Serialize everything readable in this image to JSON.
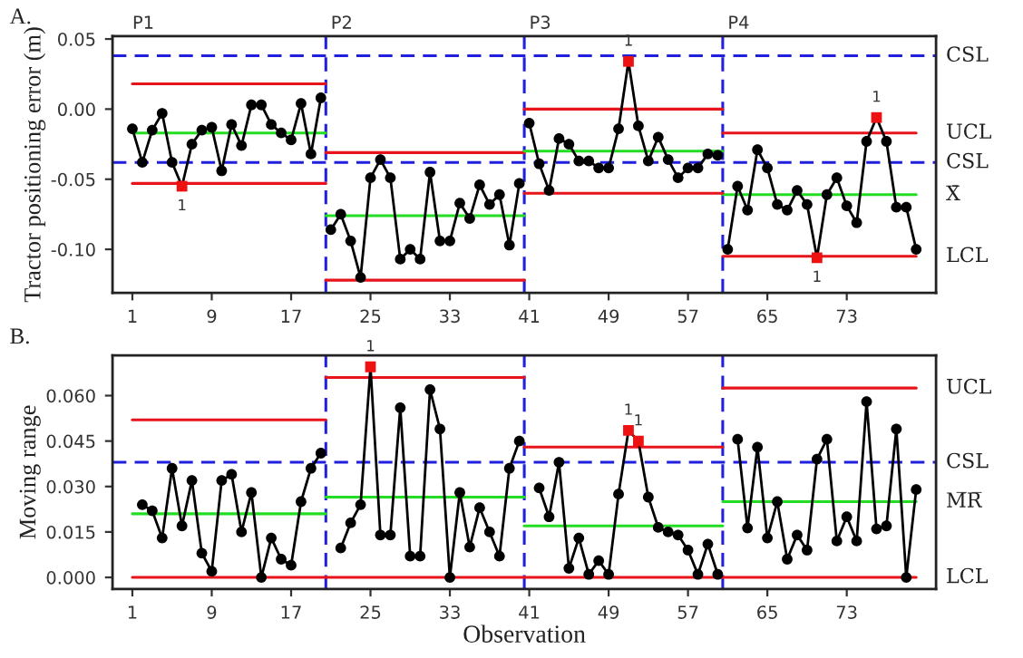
{
  "chart_data": [
    {
      "type": "line",
      "title": "A.",
      "ylabel": "Tractor positioning error (m)",
      "xlim": [
        -1,
        82
      ],
      "ylim": [
        -0.131,
        0.052
      ],
      "xticks": [
        1,
        9,
        17,
        25,
        33,
        41,
        49,
        57,
        65,
        73
      ],
      "yticks": [
        0.05,
        {
          "value": 0,
          "label": "0.00"
        },
        -0.05,
        {
          "value": -0.1,
          "label": "-0.10"
        }
      ],
      "grid": false,
      "legend": false,
      "marker": "circle",
      "line_style": "solid",
      "annotations": [
        "P1",
        "P2",
        "P3",
        "P4",
        {
          "text": "1",
          "x": 6,
          "y": -0.055
        },
        {
          "text": "1",
          "x": 51,
          "y": 0.034
        },
        {
          "text": "1",
          "x": 70,
          "y": -0.106
        },
        {
          "text": "1",
          "x": 76,
          "y": -0.006
        }
      ],
      "ref_lines": [
        {
          "axis": "y",
          "value": 0.038,
          "label": "CSL",
          "color": "#1f1fdd",
          "line_style": "dashed"
        },
        {
          "axis": "y",
          "value": -0.038,
          "label": "CSL",
          "color": "#1f1fdd",
          "line_style": "dashed"
        },
        {
          "axis": "x",
          "value": 20.5,
          "color": "#1f1fdd",
          "line_style": "dashed"
        },
        {
          "axis": "x",
          "value": 40.5,
          "color": "#1f1fdd",
          "line_style": "dashed"
        },
        {
          "axis": "x",
          "value": 60.5,
          "color": "#1f1fdd",
          "line_style": "dashed"
        }
      ],
      "series": [
        {
          "name": "UCL",
          "color": "#e8141c",
          "marker": "none",
          "x": [
            1,
            20.5,
            20.5,
            40.5,
            40.5,
            60.5,
            60.5,
            80
          ],
          "values": [
            0.018,
            0.018,
            -0.031,
            -0.031,
            0.0,
            0.0,
            -0.017,
            -0.017
          ]
        },
        {
          "name": "X̄",
          "color": "#22dd22",
          "marker": "none",
          "x": [
            1,
            20.5,
            20.5,
            40.5,
            40.5,
            60.5,
            60.5,
            80
          ],
          "values": [
            -0.017,
            -0.017,
            -0.076,
            -0.076,
            -0.03,
            -0.03,
            -0.061,
            -0.061
          ]
        },
        {
          "name": "LCL",
          "color": "#e8141c",
          "marker": "none",
          "x": [
            1,
            20.5,
            20.5,
            40.5,
            40.5,
            60.5,
            60.5,
            80
          ],
          "values": [
            -0.053,
            -0.053,
            -0.122,
            -0.122,
            -0.06,
            -0.06,
            -0.105,
            -0.105
          ]
        },
        {
          "color": "#000000",
          "x": [
            1,
            2,
            3,
            4,
            5,
            6,
            7,
            8,
            9,
            10,
            11,
            12,
            13,
            14,
            15,
            16,
            17,
            18,
            19,
            20
          ],
          "values": [
            -0.014,
            -0.038,
            -0.015,
            -0.003,
            -0.038,
            -0.055,
            -0.025,
            -0.015,
            -0.013,
            -0.044,
            -0.011,
            -0.026,
            0.003,
            0.003,
            -0.011,
            -0.017,
            -0.022,
            0.004,
            -0.032,
            0.008
          ],
          "colors": [
            "#000000",
            "#000000",
            "#000000",
            "#000000",
            "#000000",
            "#ee1111",
            "#000000",
            "#000000",
            "#000000",
            "#000000",
            "#000000",
            "#000000",
            "#000000",
            "#000000",
            "#000000",
            "#000000",
            "#000000",
            "#000000",
            "#000000",
            "#000000"
          ]
        },
        {
          "color": "#000000",
          "x": [
            21,
            22,
            23,
            24,
            25,
            26,
            27,
            28,
            29,
            30,
            31,
            32,
            33,
            34,
            35,
            36,
            37,
            38,
            39,
            40
          ],
          "values": [
            -0.086,
            -0.075,
            -0.094,
            -0.12,
            -0.049,
            -0.036,
            -0.049,
            -0.107,
            -0.1,
            -0.107,
            -0.045,
            -0.094,
            -0.094,
            -0.067,
            -0.078,
            -0.054,
            -0.068,
            -0.061,
            -0.097,
            -0.053
          ]
        },
        {
          "color": "#000000",
          "x": [
            41,
            42,
            43,
            44,
            45,
            46,
            47,
            48,
            49,
            50,
            51,
            52,
            53,
            54,
            55,
            56,
            57,
            58,
            59,
            60
          ],
          "values": [
            -0.01,
            -0.039,
            -0.058,
            -0.021,
            -0.025,
            -0.037,
            -0.037,
            -0.042,
            -0.042,
            -0.014,
            0.034,
            -0.012,
            -0.037,
            -0.02,
            -0.036,
            -0.049,
            -0.042,
            -0.042,
            -0.032,
            -0.033
          ],
          "colors": [
            "#000000",
            "#000000",
            "#000000",
            "#000000",
            "#000000",
            "#000000",
            "#000000",
            "#000000",
            "#000000",
            "#000000",
            "#ee1111",
            "#000000",
            "#000000",
            "#000000",
            "#000000",
            "#000000",
            "#000000",
            "#000000",
            "#000000",
            "#000000"
          ]
        },
        {
          "color": "#000000",
          "x": [
            61,
            62,
            63,
            64,
            65,
            66,
            67,
            68,
            69,
            70,
            71,
            72,
            73,
            74,
            75,
            76,
            77,
            78,
            79,
            80
          ],
          "values": [
            -0.1,
            -0.055,
            -0.072,
            -0.029,
            -0.042,
            -0.068,
            -0.072,
            -0.058,
            -0.068,
            -0.106,
            -0.061,
            -0.049,
            -0.069,
            -0.081,
            -0.023,
            -0.006,
            -0.023,
            -0.07,
            -0.07,
            -0.1
          ],
          "colors": [
            "#000000",
            "#000000",
            "#000000",
            "#000000",
            "#000000",
            "#000000",
            "#000000",
            "#000000",
            "#000000",
            "#ee1111",
            "#000000",
            "#000000",
            "#000000",
            "#000000",
            "#000000",
            "#ee1111",
            "#000000",
            "#000000",
            "#000000",
            "#000000"
          ]
        }
      ]
    },
    {
      "type": "line",
      "title": "B.",
      "xlabel": "Observation",
      "ylabel": "Moving range",
      "xlim": [
        -1,
        82
      ],
      "ylim": [
        -0.0038,
        0.0733
      ],
      "xticks": [
        1,
        9,
        17,
        25,
        33,
        41,
        49,
        57,
        65,
        73
      ],
      "yticks": [
        {
          "value": 0,
          "label": "0.000"
        },
        {
          "value": 0.015,
          "label": "0.015"
        },
        {
          "value": 0.03,
          "label": "0.030"
        },
        {
          "value": 0.045,
          "label": "0.045"
        },
        {
          "value": 0.06,
          "label": "0.060"
        }
      ],
      "grid": false,
      "legend": false,
      "marker": "circle",
      "line_style": "solid",
      "annotations": [
        {
          "text": "1",
          "x": 25,
          "y": 0.0695
        },
        {
          "text": "1",
          "x": 51,
          "y": 0.0485
        },
        {
          "text": "1",
          "x": 52,
          "y": 0.045
        }
      ],
      "ref_lines": [
        {
          "axis": "y",
          "value": 0.038,
          "label": "CSL",
          "color": "#1f1fdd",
          "line_style": "dashed"
        },
        {
          "axis": "x",
          "value": 20.5,
          "color": "#1f1fdd",
          "line_style": "dashed"
        },
        {
          "axis": "x",
          "value": 40.5,
          "color": "#1f1fdd",
          "line_style": "dashed"
        },
        {
          "axis": "x",
          "value": 60.5,
          "color": "#1f1fdd",
          "line_style": "dashed"
        }
      ],
      "series": [
        {
          "name": "UCL",
          "color": "#e8141c",
          "marker": "none",
          "x": [
            1,
            20.5,
            20.5,
            40.5,
            40.5,
            60.5,
            60.5,
            80
          ],
          "values": [
            0.052,
            0.052,
            0.066,
            0.066,
            0.043,
            0.043,
            0.0625,
            0.0625
          ]
        },
        {
          "name": "M̅R̅",
          "color": "#22dd22",
          "marker": "none",
          "x": [
            1,
            20.5,
            20.5,
            40.5,
            40.5,
            60.5,
            60.5,
            80
          ],
          "values": [
            0.021,
            0.021,
            0.0265,
            0.0265,
            0.017,
            0.017,
            0.025,
            0.025
          ]
        },
        {
          "name": "LCL",
          "color": "#e8141c",
          "marker": "none",
          "x": [
            1,
            20.5,
            20.5,
            40.5,
            40.5,
            60.5,
            60.5,
            80
          ],
          "values": [
            0,
            0,
            0,
            0,
            0,
            0,
            0,
            0
          ]
        },
        {
          "color": "#000000",
          "x": [
            2,
            3,
            4,
            5,
            6,
            7,
            8,
            9,
            10,
            11,
            12,
            13,
            14,
            15,
            16,
            17,
            18,
            19,
            20
          ],
          "values": [
            0.024,
            0.022,
            0.013,
            0.036,
            0.017,
            0.032,
            0.008,
            0.002,
            0.032,
            0.034,
            0.015,
            0.028,
            0.0,
            0.013,
            0.006,
            0.004,
            0.025,
            0.036,
            0.041
          ]
        },
        {
          "color": "#000000",
          "x": [
            22,
            23,
            24,
            25,
            26,
            27,
            28,
            29,
            30,
            31,
            32,
            33,
            34,
            35,
            36,
            37,
            38,
            39,
            40
          ],
          "values": [
            0.0097,
            0.018,
            0.024,
            0.0695,
            0.014,
            0.014,
            0.056,
            0.007,
            0.007,
            0.062,
            0.049,
            0.0,
            0.028,
            0.01,
            0.023,
            0.015,
            0.007,
            0.036,
            0.045
          ],
          "colors": [
            "#000000",
            "#000000",
            "#000000",
            "#ee1111",
            "#000000",
            "#000000",
            "#000000",
            "#000000",
            "#000000",
            "#000000",
            "#000000",
            "#000000",
            "#000000",
            "#000000",
            "#000000",
            "#000000",
            "#000000",
            "#000000",
            "#000000"
          ]
        },
        {
          "color": "#000000",
          "x": [
            42,
            43,
            44,
            45,
            46,
            47,
            48,
            49,
            50,
            51,
            52,
            53,
            54,
            55,
            56,
            57,
            58,
            59,
            60
          ],
          "values": [
            0.0295,
            0.02,
            0.038,
            0.003,
            0.013,
            0.001,
            0.0055,
            0.001,
            0.0275,
            0.0485,
            0.045,
            0.0265,
            0.0165,
            0.015,
            0.014,
            0.009,
            0.001,
            0.011,
            0.001
          ],
          "colors": [
            "#000000",
            "#000000",
            "#000000",
            "#000000",
            "#000000",
            "#000000",
            "#000000",
            "#000000",
            "#000000",
            "#ee1111",
            "#ee1111",
            "#000000",
            "#000000",
            "#000000",
            "#000000",
            "#000000",
            "#000000",
            "#000000",
            "#000000"
          ]
        },
        {
          "color": "#000000",
          "x": [
            62,
            63,
            64,
            65,
            66,
            67,
            68,
            69,
            70,
            71,
            72,
            73,
            74,
            75,
            76,
            77,
            78,
            79,
            80
          ],
          "values": [
            0.0456,
            0.0163,
            0.043,
            0.013,
            0.025,
            0.006,
            0.014,
            0.009,
            0.039,
            0.0456,
            0.012,
            0.02,
            0.012,
            0.058,
            0.016,
            0.017,
            0.049,
            0.0,
            0.029
          ]
        }
      ]
    }
  ]
}
